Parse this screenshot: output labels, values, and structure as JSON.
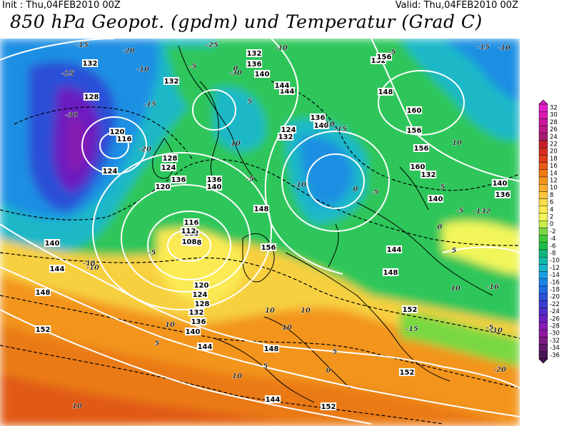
{
  "header": {
    "init": "Init : Thu,04FEB2010 00Z",
    "valid": "Valid: Thu,04FEB2010 00Z",
    "title": "850 hPa Geopot. (gpdm) und Temperatur (Grad C)"
  },
  "colorbar": {
    "labels": [
      "32",
      "30",
      "28",
      "26",
      "24",
      "22",
      "20",
      "18",
      "16",
      "14",
      "12",
      "10",
      "8",
      "6",
      "4",
      "2",
      "0",
      "-2",
      "-4",
      "-6",
      "-8",
      "-10",
      "-12",
      "-14",
      "-16",
      "-18",
      "-20",
      "-22",
      "-24",
      "-26",
      "-28",
      "-30",
      "-32",
      "-34",
      "-36"
    ],
    "colors": [
      "#e21fc9",
      "#d81ab0",
      "#cc189a",
      "#b91a85",
      "#a21b70",
      "#c41e2b",
      "#d42d1e",
      "#e03c1b",
      "#ea5a16",
      "#f07a12",
      "#f3951c",
      "#f7ae2e",
      "#f9c53e",
      "#fbdc48",
      "#fbea52",
      "#f2f65a",
      "#c8ec4a",
      "#79d843",
      "#3fc93a",
      "#1cbd48",
      "#11b77a",
      "#12b8a6",
      "#18b4c9",
      "#1a9ee0",
      "#1b84e6",
      "#1d6bdf",
      "#2a4fd6",
      "#3b3bd0",
      "#4f2bc8",
      "#6a1fc0",
      "#861ab2",
      "#8f1a9e",
      "#7d1a82",
      "#621768",
      "#4a1554"
    ]
  },
  "map": {
    "geopotential_labels": [
      "132",
      "136",
      "140",
      "144",
      "148",
      "152",
      "156",
      "160",
      "128",
      "124",
      "120",
      "116",
      "112",
      "108",
      "132",
      "136",
      "140",
      "144",
      "148",
      "152",
      "156",
      "160",
      "140",
      "136",
      "132",
      "128",
      "124",
      "120",
      "116",
      "112",
      "108",
      "120",
      "124",
      "128",
      "132",
      "136",
      "140",
      "144",
      "148",
      "152",
      "156",
      "132",
      "140",
      "144",
      "148",
      "152",
      "156",
      "136",
      "140",
      "144",
      "148",
      "124",
      "132",
      "136",
      "140",
      "144",
      "152",
      "156"
    ],
    "temperature_labels": [
      "-15",
      "-20",
      "-25",
      "-30",
      "-10",
      "-5",
      "-15",
      "-20",
      "-25",
      "-30",
      "-10",
      "-5",
      "0",
      "5",
      "10",
      "-5",
      "-10",
      "-15",
      "-10",
      "-5",
      "0",
      "5",
      "10",
      "-15",
      "-10",
      "-5",
      "0",
      "5",
      "10",
      "-16",
      "-132",
      "-10",
      "-5",
      "-15",
      "-20",
      "-10",
      "-15",
      "-5",
      "0",
      "10",
      "5",
      "10",
      "10",
      "10",
      "5",
      "0",
      "5",
      "10",
      "10"
    ]
  }
}
